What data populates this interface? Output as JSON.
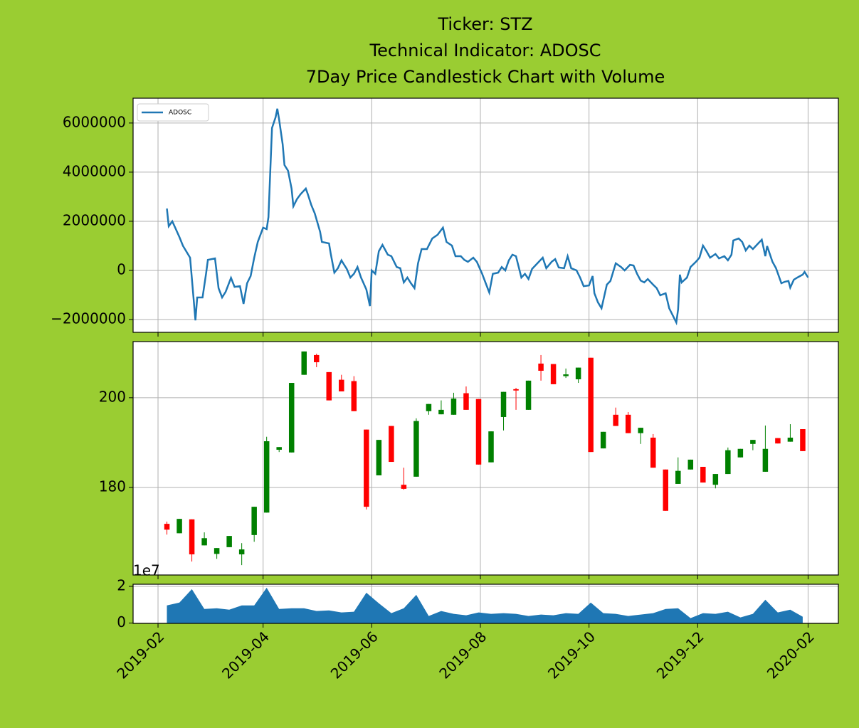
{
  "chart_data": [
    {
      "type": "line",
      "title": [
        "Ticker: STZ",
        "Technical Indicator: ADOSC",
        "7Day Price Candlestick Chart with Volume"
      ],
      "x": [
        737096,
        737097,
        737099,
        737101,
        737103,
        737105,
        737109,
        737112,
        737113,
        737116,
        737118,
        737119,
        737123,
        737125,
        737127,
        737129,
        737132,
        737134,
        737137,
        737139,
        737141,
        737143,
        737145,
        737147,
        737150,
        737152,
        737153,
        737155,
        737157,
        737158,
        737159,
        737161,
        737162,
        737164,
        737166,
        737167,
        737169,
        737171,
        737174,
        737175,
        737177,
        737179,
        737182,
        737183,
        737185,
        737187,
        737188,
        737190,
        737192,
        737194,
        737195,
        737197,
        737199,
        737201,
        737203,
        737205,
        737208,
        737210,
        737211,
        737213,
        737215,
        737217,
        737220,
        737222,
        737225,
        737227,
        737229,
        737231,
        737233,
        737235,
        737237,
        737239,
        737242,
        737245,
        737248,
        737251,
        737253,
        737256,
        737258,
        737261,
        737263,
        737265,
        737268,
        737270,
        737273,
        737275,
        737277,
        737279,
        737282,
        737284,
        737286,
        737288,
        737290,
        737292,
        737295,
        737297,
        737299,
        737301,
        737304,
        737307,
        737309,
        737312,
        737314,
        737316,
        737319,
        737321,
        737323,
        737326,
        737328,
        737330,
        737333,
        737335,
        737336,
        737338,
        737340,
        737343,
        737345,
        737348,
        737351,
        737353,
        737356,
        737358,
        737360,
        737362,
        737364,
        737366,
        737369,
        737371,
        737373,
        737376,
        737378,
        737380,
        737382,
        737383,
        737384,
        737385,
        737388,
        737390,
        737393,
        737395,
        737397,
        737399,
        737401,
        737404,
        737406,
        737409,
        737411,
        737413,
        737414,
        737417,
        737419,
        737421,
        737423,
        737425,
        737428,
        737430,
        737432,
        737433,
        737436,
        737438,
        737441,
        737443,
        737445,
        737446,
        737448,
        737450,
        737453,
        737454,
        737456
      ],
      "series": [
        {
          "name": "ADOSC",
          "color": "#1f77b4",
          "values": [
            2520000,
            1800000,
            2000000,
            1680000,
            1360000,
            1000000,
            520000,
            -2030000,
            -1100000,
            -1100000,
            -120000,
            430000,
            490000,
            -720000,
            -1100000,
            -870000,
            -300000,
            -670000,
            -640000,
            -1360000,
            -520000,
            -230000,
            520000,
            1160000,
            1740000,
            1680000,
            2170000,
            5800000,
            6230000,
            6580000,
            6140000,
            5130000,
            4290000,
            4060000,
            3330000,
            2610000,
            2900000,
            3100000,
            3330000,
            3130000,
            2670000,
            2320000,
            1570000,
            1160000,
            1130000,
            1100000,
            670000,
            -90000,
            90000,
            410000,
            290000,
            60000,
            -290000,
            -140000,
            140000,
            -290000,
            -780000,
            -1450000,
            0,
            -140000,
            780000,
            1040000,
            640000,
            580000,
            140000,
            90000,
            -490000,
            -290000,
            -520000,
            -720000,
            290000,
            870000,
            870000,
            1300000,
            1450000,
            1740000,
            1160000,
            1010000,
            580000,
            580000,
            430000,
            350000,
            520000,
            350000,
            -140000,
            -520000,
            -900000,
            -140000,
            -90000,
            140000,
            0,
            410000,
            640000,
            580000,
            -290000,
            -140000,
            -350000,
            60000,
            290000,
            520000,
            90000,
            350000,
            460000,
            120000,
            90000,
            580000,
            90000,
            0,
            -290000,
            -640000,
            -610000,
            -230000,
            -930000,
            -1300000,
            -1540000,
            -580000,
            -430000,
            290000,
            140000,
            0,
            230000,
            200000,
            -140000,
            -410000,
            -490000,
            -350000,
            -580000,
            -720000,
            -1010000,
            -930000,
            -1540000,
            -1830000,
            -2120000,
            -1590000,
            -170000,
            -490000,
            -290000,
            140000,
            350000,
            520000,
            1010000,
            780000,
            520000,
            670000,
            490000,
            580000,
            410000,
            640000,
            1220000,
            1300000,
            1160000,
            810000,
            1010000,
            870000,
            1100000,
            1250000,
            580000,
            990000,
            350000,
            90000,
            -520000,
            -460000,
            -430000,
            -700000,
            -380000,
            -290000,
            -170000,
            -60000,
            -290000
          ]
        }
      ],
      "xlim": [
        737077,
        737473
      ],
      "xticks": [
        737091,
        737150,
        737211,
        737272,
        737333,
        737394,
        737456
      ],
      "ylim": [
        -2520000,
        7010000
      ],
      "yticks": [
        {
          "value": -2000000,
          "label": "−2000000"
        },
        0,
        2000000,
        4000000,
        6000000
      ],
      "grid": true,
      "legend": "upper left"
    },
    {
      "type": "candlestick",
      "x": [
        737096,
        737103,
        737110,
        737117,
        737124,
        737131,
        737138,
        737145,
        737152,
        737159,
        737166,
        737173,
        737180,
        737187,
        737194,
        737201,
        737208,
        737215,
        737222,
        737229,
        737236,
        737243,
        737250,
        737257,
        737264,
        737271,
        737278,
        737285,
        737292,
        737299,
        737306,
        737313,
        737320,
        737327,
        737334,
        737341,
        737348,
        737355,
        737362,
        737369,
        737376,
        737383,
        737390,
        737397,
        737404,
        737411,
        737418,
        737425,
        737432,
        737439,
        737446,
        737453
      ],
      "open": [
        171.9,
        169.8,
        172.9,
        167.1,
        165.2,
        166.7,
        165.1,
        169.4,
        174.4,
        188.4,
        187.8,
        205.1,
        209.5,
        205.7,
        204.0,
        203.7,
        192.9,
        182.7,
        193.7,
        180.6,
        182.4,
        197.0,
        196.3,
        196.2,
        201.0,
        199.7,
        185.6,
        195.7,
        201.9,
        197.3,
        207.6,
        207.5,
        204.8,
        204.1,
        208.9,
        188.7,
        196.2,
        196.2,
        192.1,
        191.1,
        184.0,
        180.8,
        184.0,
        184.6,
        180.6,
        183.0,
        186.7,
        189.7,
        183.5,
        191.0,
        190.2,
        193.0
      ],
      "high": [
        172.4,
        173.0,
        172.9,
        170.0,
        166.5,
        169.2,
        167.6,
        175.7,
        191.3,
        189.0,
        203.3,
        210.3,
        209.8,
        205.7,
        205.1,
        204.8,
        192.9,
        190.6,
        193.7,
        184.4,
        195.4,
        198.6,
        199.4,
        201.1,
        202.5,
        199.7,
        192.5,
        201.3,
        202.2,
        203.8,
        209.5,
        207.5,
        206.5,
        206.7,
        208.9,
        192.4,
        197.8,
        196.8,
        193.3,
        191.9,
        184.0,
        186.7,
        186.2,
        184.6,
        183.0,
        188.9,
        188.6,
        190.6,
        193.8,
        191.0,
        194.1,
        193.0
      ],
      "low": [
        169.5,
        169.8,
        163.5,
        167.1,
        164.1,
        166.7,
        162.7,
        167.9,
        174.4,
        187.9,
        187.8,
        205.1,
        206.8,
        199.4,
        201.4,
        197.0,
        175.1,
        182.7,
        185.7,
        179.5,
        182.4,
        196.2,
        196.3,
        196.2,
        197.3,
        185.1,
        185.6,
        192.7,
        197.3,
        197.3,
        203.8,
        203.0,
        204.4,
        203.3,
        187.9,
        188.7,
        193.7,
        192.1,
        189.7,
        184.4,
        174.8,
        180.8,
        184.0,
        181.1,
        179.8,
        183.0,
        186.7,
        188.3,
        183.5,
        189.8,
        190.2,
        188.1
      ],
      "close": [
        170.6,
        173.0,
        165.1,
        168.7,
        166.5,
        169.2,
        166.2,
        175.7,
        190.3,
        189.0,
        203.3,
        210.3,
        207.9,
        199.4,
        201.4,
        197.0,
        175.7,
        190.6,
        185.7,
        179.7,
        194.8,
        198.6,
        197.3,
        199.8,
        197.3,
        185.1,
        192.5,
        201.3,
        201.6,
        203.8,
        206.0,
        203.0,
        205.2,
        206.7,
        187.9,
        192.4,
        193.7,
        192.1,
        193.3,
        184.4,
        174.8,
        183.7,
        186.2,
        181.1,
        183.0,
        188.3,
        188.6,
        190.6,
        188.6,
        189.8,
        191.1,
        188.1
      ],
      "up_color": "green",
      "down_color": "red",
      "xlim": [
        737077,
        737473
      ],
      "xticks": [
        737091,
        737150,
        737211,
        737272,
        737333,
        737394,
        737456
      ],
      "ylim": [
        160.5,
        212.5
      ],
      "yticks": [
        180,
        200
      ],
      "grid": true
    },
    {
      "type": "area",
      "x": [
        737096,
        737103,
        737110,
        737117,
        737124,
        737131,
        737138,
        737145,
        737152,
        737159,
        737166,
        737173,
        737180,
        737187,
        737194,
        737201,
        737208,
        737215,
        737222,
        737229,
        737236,
        737243,
        737250,
        737257,
        737264,
        737271,
        737278,
        737285,
        737292,
        737299,
        737306,
        737313,
        737320,
        737327,
        737334,
        737341,
        737348,
        737355,
        737362,
        737369,
        737376,
        737383,
        737390,
        737397,
        737404,
        737411,
        737418,
        737425,
        737432,
        737439,
        737446,
        737453
      ],
      "values": [
        9620000,
        11150000,
        18460000,
        7690000,
        8080000,
        7310000,
        9620000,
        9620000,
        19230000,
        7690000,
        8080000,
        8080000,
        6540000,
        6920000,
        5770000,
        6150000,
        16540000,
        10770000,
        5380000,
        8080000,
        15380000,
        3850000,
        6540000,
        5000000,
        4230000,
        5770000,
        5000000,
        5380000,
        5000000,
        3850000,
        4620000,
        4230000,
        5380000,
        5000000,
        11150000,
        5380000,
        5000000,
        3850000,
        4620000,
        5380000,
        7690000,
        8080000,
        2690000,
        5380000,
        5000000,
        6150000,
        3080000,
        5000000,
        12690000,
        5770000,
        7310000,
        3460000
      ],
      "color": "#1f77b4",
      "xlim": [
        737077,
        737473
      ],
      "xticks": [
        {
          "value": 737091,
          "label": "2019-02"
        },
        {
          "value": 737150,
          "label": "2019-04"
        },
        {
          "value": 737211,
          "label": "2019-06"
        },
        {
          "value": 737272,
          "label": "2019-08"
        },
        {
          "value": 737333,
          "label": "2019-10"
        },
        {
          "value": 737394,
          "label": "2019-12"
        },
        {
          "value": 737456,
          "label": "2020-02"
        }
      ],
      "ylim": [
        -200000,
        21150000
      ],
      "yticks": [
        0,
        {
          "value": 20000000,
          "label": "2"
        }
      ],
      "y_offset_label": "1e7",
      "grid": true
    }
  ]
}
